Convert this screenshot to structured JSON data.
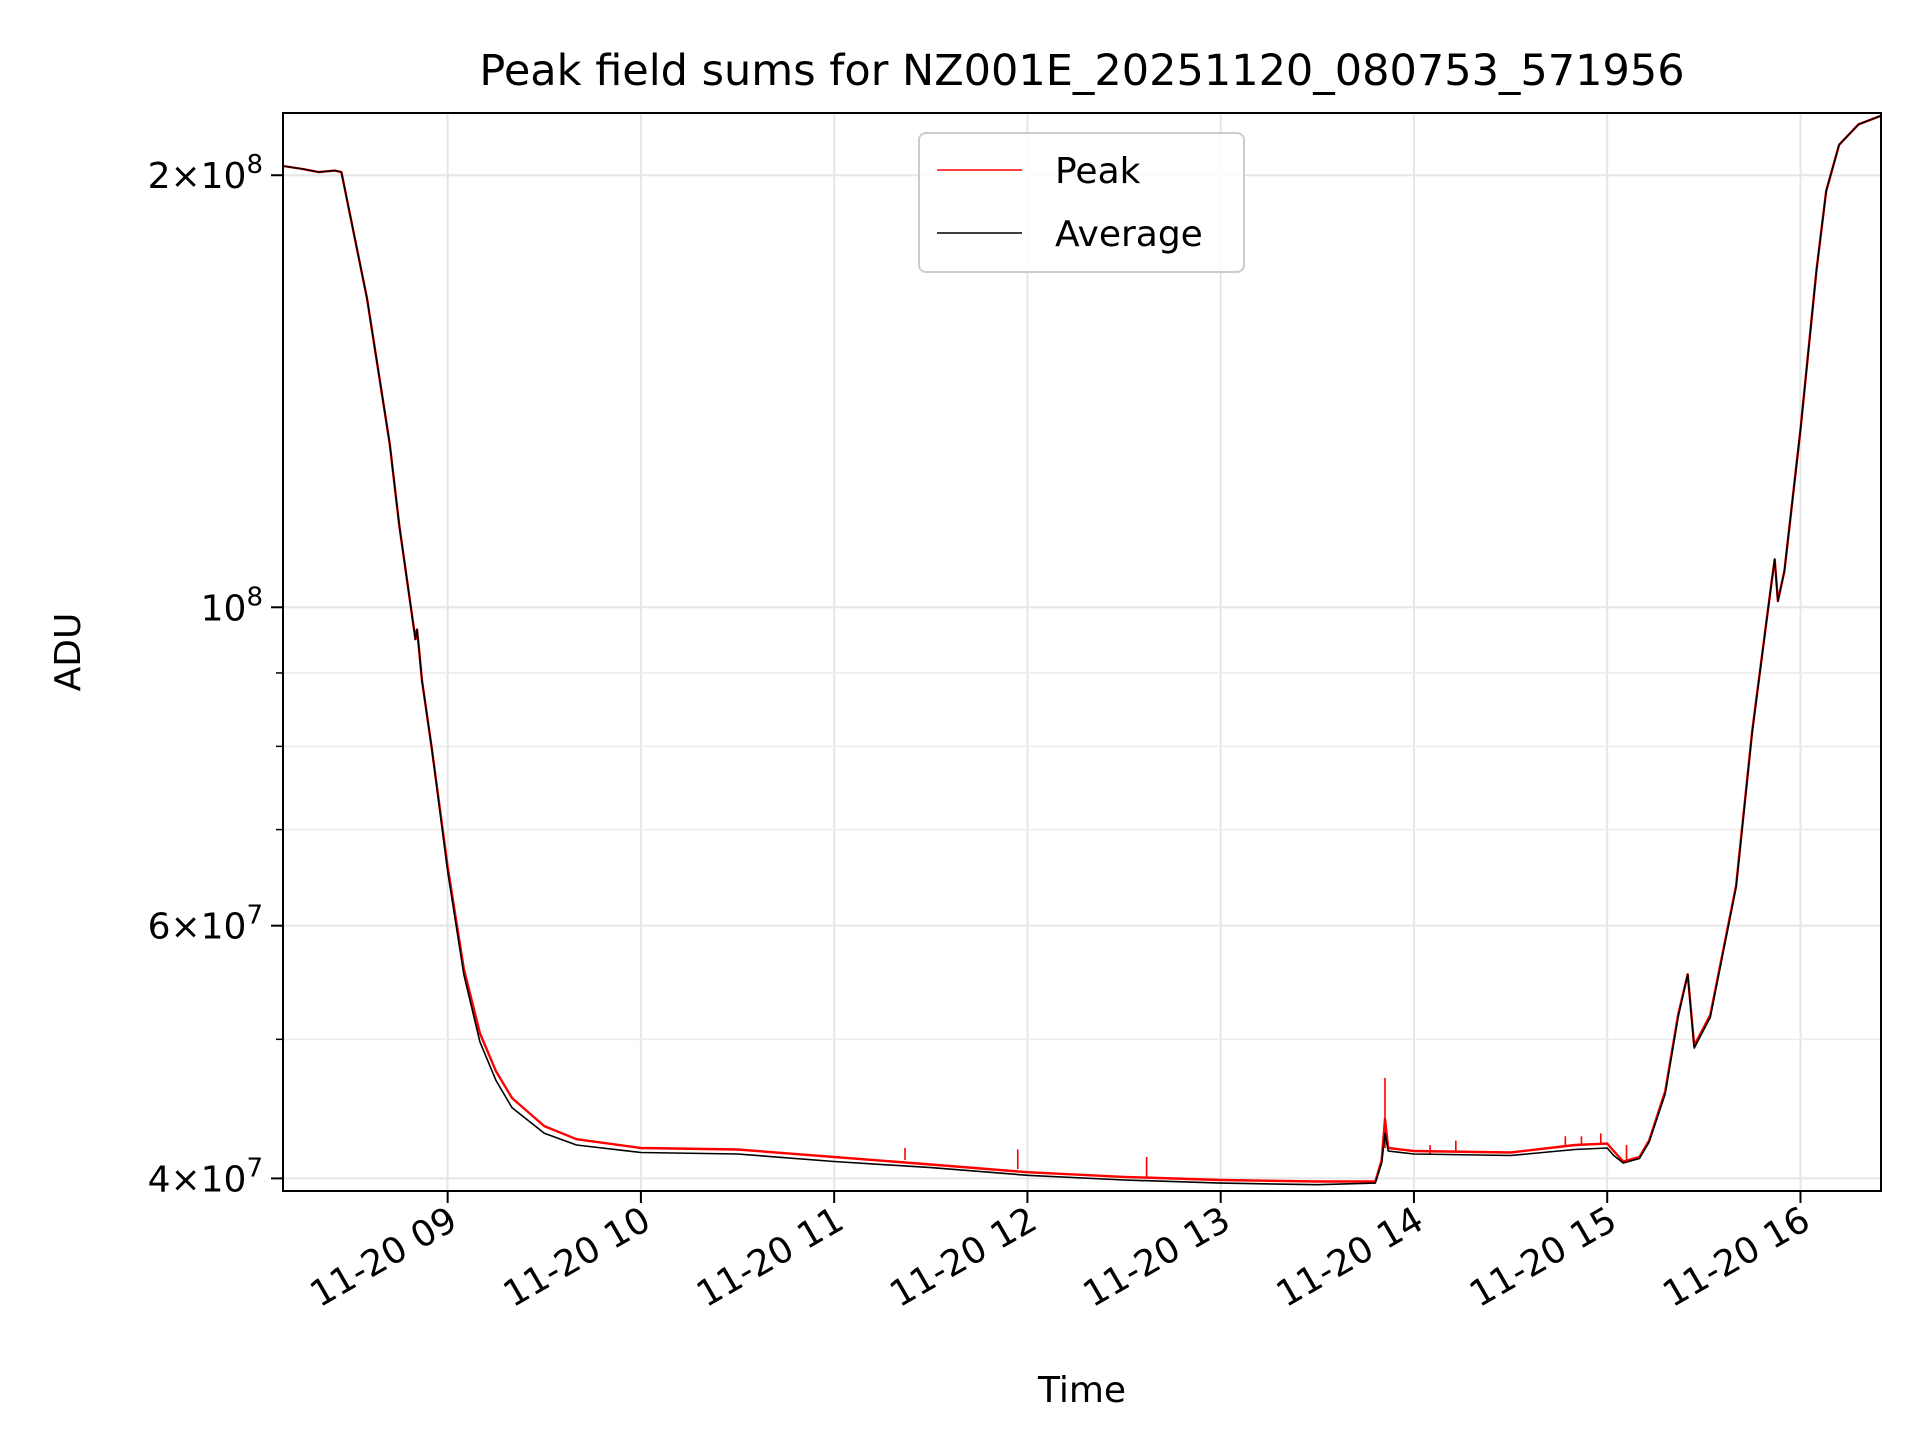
{
  "chart_data": {
    "type": "line",
    "title": "Peak field sums for NZ001E_20251120_080753_571956",
    "xlabel": "Time",
    "ylabel": "ADU",
    "yscale": "log",
    "ylim": [
      39200000,
      221000000
    ],
    "xlim": [
      "2025-11-20 08:08:53",
      "2025-11-20 16:25:00"
    ],
    "grid": true,
    "legend_position": "top-center",
    "x_ticks": [
      "2025-11-20 09:00",
      "2025-11-20 10:00",
      "2025-11-20 11:00",
      "2025-11-20 12:00",
      "2025-11-20 13:00",
      "2025-11-20 14:00",
      "2025-11-20 15:00",
      "2025-11-20 16:00"
    ],
    "x_tick_labels": [
      "11-20 09",
      "11-20 10",
      "11-20 11",
      "11-20 12",
      "11-20 13",
      "11-20 14",
      "11-20 15",
      "11-20 16"
    ],
    "y_major_ticks": [
      {
        "value": 40000000,
        "mantissa": "4",
        "exponent": "7"
      },
      {
        "value": 60000000,
        "mantissa": "6",
        "exponent": "7"
      },
      {
        "value": 100000000,
        "mantissa": "",
        "exponent": "8"
      },
      {
        "value": 200000000,
        "mantissa": "2",
        "exponent": "8"
      }
    ],
    "y_minor_ticks": [
      50000000,
      70000000,
      80000000,
      90000000
    ],
    "series": [
      {
        "name": "Peak",
        "color": "#ff0000",
        "points": [
          [
            "2025-11-20 08:08:53",
            203000000
          ],
          [
            "2025-11-20 08:15",
            202000000
          ],
          [
            "2025-11-20 08:20",
            201000000
          ],
          [
            "2025-11-20 08:25",
            201500000
          ],
          [
            "2025-11-20 08:27",
            201000000
          ],
          [
            "2025-11-20 08:35",
            164000000
          ],
          [
            "2025-11-20 08:45",
            114000000
          ],
          [
            "2025-11-20 08:42",
            130000000
          ],
          [
            "2025-11-20 08:50",
            95000000
          ],
          [
            "2025-11-20 08:50:30",
            96500000
          ],
          [
            "2025-11-20 08:51",
            94000000
          ],
          [
            "2025-11-20 08:52",
            89000000
          ],
          [
            "2025-11-20 08:55",
            80000000
          ],
          [
            "2025-11-20 09:00",
            66000000
          ],
          [
            "2025-11-20 09:05",
            56000000
          ],
          [
            "2025-11-20 09:10",
            50500000
          ],
          [
            "2025-11-20 09:15",
            47500000
          ],
          [
            "2025-11-20 09:20",
            45500000
          ],
          [
            "2025-11-20 09:30",
            43500000
          ],
          [
            "2025-11-20 09:40",
            42600000
          ],
          [
            "2025-11-20 10:00",
            42000000
          ],
          [
            "2025-11-20 10:30",
            41900000
          ],
          [
            "2025-11-20 11:00",
            41400000
          ],
          [
            "2025-11-20 11:30",
            40900000
          ],
          [
            "2025-11-20 12:00",
            40400000
          ],
          [
            "2025-11-20 12:30",
            40100000
          ],
          [
            "2025-11-20 13:00",
            39900000
          ],
          [
            "2025-11-20 13:30",
            39800000
          ],
          [
            "2025-11-20 13:48",
            39800000
          ],
          [
            "2025-11-20 13:50",
            41200000
          ],
          [
            "2025-11-20 13:51",
            44000000
          ],
          [
            "2025-11-20 13:52",
            42000000
          ],
          [
            "2025-11-20 14:00",
            41800000
          ],
          [
            "2025-11-20 14:30",
            41700000
          ],
          [
            "2025-11-20 14:50",
            42200000
          ],
          [
            "2025-11-20 15:00",
            42300000
          ],
          [
            "2025-11-20 15:02",
            41800000
          ],
          [
            "2025-11-20 15:05",
            41100000
          ],
          [
            "2025-11-20 15:10",
            41400000
          ],
          [
            "2025-11-20 15:13",
            42500000
          ],
          [
            "2025-11-20 15:18",
            46000000
          ],
          [
            "2025-11-20 15:22",
            52000000
          ],
          [
            "2025-11-20 15:25",
            55500000
          ],
          [
            "2025-11-20 15:27",
            49500000
          ],
          [
            "2025-11-20 15:32",
            52000000
          ],
          [
            "2025-11-20 15:40",
            64000000
          ],
          [
            "2025-11-20 15:45",
            82000000
          ],
          [
            "2025-11-20 15:50",
            100000000
          ],
          [
            "2025-11-20 15:51",
            104000000
          ],
          [
            "2025-11-20 15:52",
            108000000
          ],
          [
            "2025-11-20 15:53",
            101000000
          ],
          [
            "2025-11-20 15:55",
            106000000
          ],
          [
            "2025-11-20 16:00",
            133000000
          ],
          [
            "2025-11-20 16:05",
            172000000
          ],
          [
            "2025-11-20 16:08",
            195000000
          ],
          [
            "2025-11-20 16:12",
            210000000
          ],
          [
            "2025-11-20 16:18",
            217000000
          ],
          [
            "2025-11-20 16:25",
            220000000
          ]
        ],
        "spikes": [
          [
            "2025-11-20 11:22",
            41200000,
            42000000
          ],
          [
            "2025-11-20 11:57",
            40600000,
            41900000
          ],
          [
            "2025-11-20 12:37",
            40100000,
            41400000
          ],
          [
            "2025-11-20 13:51",
            42000000,
            47000000
          ],
          [
            "2025-11-20 14:05",
            41600000,
            42200000
          ],
          [
            "2025-11-20 14:13",
            41700000,
            42500000
          ],
          [
            "2025-11-20 14:47",
            42100000,
            42800000
          ],
          [
            "2025-11-20 14:52",
            42200000,
            42800000
          ],
          [
            "2025-11-20 14:58",
            42300000,
            43000000
          ],
          [
            "2025-11-20 15:06",
            41200000,
            42200000
          ]
        ]
      },
      {
        "name": "Average",
        "color": "#000000",
        "points": [
          [
            "2025-11-20 08:08:53",
            203000000
          ],
          [
            "2025-11-20 08:15",
            202000000
          ],
          [
            "2025-11-20 08:20",
            201000000
          ],
          [
            "2025-11-20 08:25",
            201500000
          ],
          [
            "2025-11-20 08:27",
            201000000
          ],
          [
            "2025-11-20 08:35",
            164000000
          ],
          [
            "2025-11-20 08:42",
            130000000
          ],
          [
            "2025-11-20 08:45",
            114000000
          ],
          [
            "2025-11-20 08:50",
            95000000
          ],
          [
            "2025-11-20 08:50:30",
            96500000
          ],
          [
            "2025-11-20 08:51",
            94000000
          ],
          [
            "2025-11-20 08:52",
            89000000
          ],
          [
            "2025-11-20 08:55",
            80000000
          ],
          [
            "2025-11-20 09:00",
            65500000
          ],
          [
            "2025-11-20 09:05",
            55500000
          ],
          [
            "2025-11-20 09:10",
            49800000
          ],
          [
            "2025-11-20 09:15",
            46800000
          ],
          [
            "2025-11-20 09:20",
            44800000
          ],
          [
            "2025-11-20 09:30",
            43000000
          ],
          [
            "2025-11-20 09:40",
            42200000
          ],
          [
            "2025-11-20 10:00",
            41700000
          ],
          [
            "2025-11-20 10:30",
            41600000
          ],
          [
            "2025-11-20 11:00",
            41100000
          ],
          [
            "2025-11-20 11:30",
            40700000
          ],
          [
            "2025-11-20 12:00",
            40200000
          ],
          [
            "2025-11-20 12:30",
            39900000
          ],
          [
            "2025-11-20 13:00",
            39700000
          ],
          [
            "2025-11-20 13:30",
            39600000
          ],
          [
            "2025-11-20 13:48",
            39700000
          ],
          [
            "2025-11-20 13:50",
            41000000
          ],
          [
            "2025-11-20 13:51",
            43000000
          ],
          [
            "2025-11-20 13:52",
            41800000
          ],
          [
            "2025-11-20 14:00",
            41600000
          ],
          [
            "2025-11-20 14:30",
            41500000
          ],
          [
            "2025-11-20 14:50",
            41900000
          ],
          [
            "2025-11-20 15:00",
            42000000
          ],
          [
            "2025-11-20 15:02",
            41500000
          ],
          [
            "2025-11-20 15:05",
            41000000
          ],
          [
            "2025-11-20 15:10",
            41300000
          ],
          [
            "2025-11-20 15:13",
            42400000
          ],
          [
            "2025-11-20 15:18",
            45800000
          ],
          [
            "2025-11-20 15:22",
            51800000
          ],
          [
            "2025-11-20 15:25",
            55500000
          ],
          [
            "2025-11-20 15:27",
            49300000
          ],
          [
            "2025-11-20 15:32",
            51800000
          ],
          [
            "2025-11-20 15:40",
            63800000
          ],
          [
            "2025-11-20 15:45",
            81800000
          ],
          [
            "2025-11-20 15:50",
            100000000
          ],
          [
            "2025-11-20 15:51",
            104000000
          ],
          [
            "2025-11-20 15:52",
            108000000
          ],
          [
            "2025-11-20 15:53",
            101000000
          ],
          [
            "2025-11-20 15:55",
            106000000
          ],
          [
            "2025-11-20 16:00",
            133000000
          ],
          [
            "2025-11-20 16:05",
            172000000
          ],
          [
            "2025-11-20 16:08",
            195000000
          ],
          [
            "2025-11-20 16:12",
            210000000
          ],
          [
            "2025-11-20 16:18",
            217000000
          ],
          [
            "2025-11-20 16:25",
            220000000
          ]
        ]
      }
    ]
  }
}
